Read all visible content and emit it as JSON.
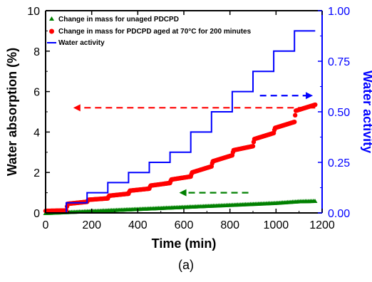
{
  "chart_data": {
    "type": "scatter",
    "title": "",
    "caption": "(a)",
    "xlabel": "Time (min)",
    "ylabel": "Water absorption (%)",
    "y2label": "Water activity",
    "xlim": [
      0,
      1200
    ],
    "ylim": [
      0,
      10
    ],
    "y2lim": [
      0,
      1.0
    ],
    "xticks": [
      "0",
      "200",
      "400",
      "600",
      "800",
      "1000",
      "1200"
    ],
    "yticks": [
      "0",
      "2",
      "4",
      "6",
      "8",
      "10"
    ],
    "y2ticks": [
      "0.00",
      "0.25",
      "0.50",
      "0.75",
      "1.00"
    ],
    "grid": false,
    "legend_position": "top-left",
    "colors": {
      "left_axis": "#000000",
      "right_axis": "#0000ff",
      "unaged": "#008000",
      "aged": "#ff0000",
      "activity": "#0000ff"
    },
    "series": [
      {
        "name": "Change in mass for unaged PDCPD",
        "axis": "left",
        "marker": "triangle",
        "color": "#008000",
        "x": [
          0,
          100,
          200,
          300,
          400,
          500,
          600,
          700,
          800,
          900,
          1000,
          1100,
          1170
        ],
        "y": [
          0.0,
          0.05,
          0.1,
          0.15,
          0.2,
          0.25,
          0.3,
          0.35,
          0.4,
          0.45,
          0.5,
          0.58,
          0.6
        ]
      },
      {
        "name": "Change in mass for PDCPD aged at 70°C for 200 minutes",
        "axis": "left",
        "marker": "circle",
        "color": "#ff0000",
        "x": [
          0,
          90,
          95,
          180,
          185,
          270,
          275,
          360,
          365,
          450,
          455,
          540,
          545,
          630,
          635,
          720,
          725,
          810,
          815,
          900,
          905,
          990,
          995,
          1080,
          1085,
          1170
        ],
        "y": [
          0.1,
          0.12,
          0.45,
          0.55,
          0.65,
          0.72,
          0.85,
          0.95,
          1.1,
          1.2,
          1.35,
          1.48,
          1.65,
          1.8,
          2.0,
          2.3,
          2.55,
          2.85,
          3.1,
          3.3,
          3.65,
          3.95,
          4.2,
          4.5,
          5.05,
          5.35
        ]
      },
      {
        "name": "Water activity",
        "axis": "right",
        "marker": "step-line",
        "color": "#0000ff",
        "x": [
          0,
          90,
          90,
          180,
          180,
          270,
          270,
          360,
          360,
          450,
          450,
          540,
          540,
          630,
          630,
          720,
          720,
          810,
          810,
          900,
          900,
          990,
          990,
          1080,
          1080,
          1170
        ],
        "y": [
          0.0,
          0.0,
          0.05,
          0.05,
          0.1,
          0.1,
          0.15,
          0.15,
          0.2,
          0.2,
          0.25,
          0.25,
          0.3,
          0.3,
          0.4,
          0.4,
          0.5,
          0.5,
          0.6,
          0.6,
          0.7,
          0.7,
          0.8,
          0.8,
          0.9,
          0.9
        ]
      }
    ],
    "annotations": [
      {
        "type": "dashed-arrow",
        "color": "#ff0000",
        "direction": "left",
        "axis": "left",
        "x_from": 1170,
        "x_to": 120,
        "y": 5.2
      },
      {
        "type": "dashed-arrow",
        "color": "#008000",
        "direction": "left",
        "axis": "left",
        "x_from": 880,
        "x_to": 580,
        "y": 1.0
      },
      {
        "type": "dashed-arrow",
        "color": "#0000ff",
        "direction": "right",
        "axis": "right",
        "x_from": 930,
        "x_to": 1160,
        "y": 0.58
      }
    ]
  }
}
